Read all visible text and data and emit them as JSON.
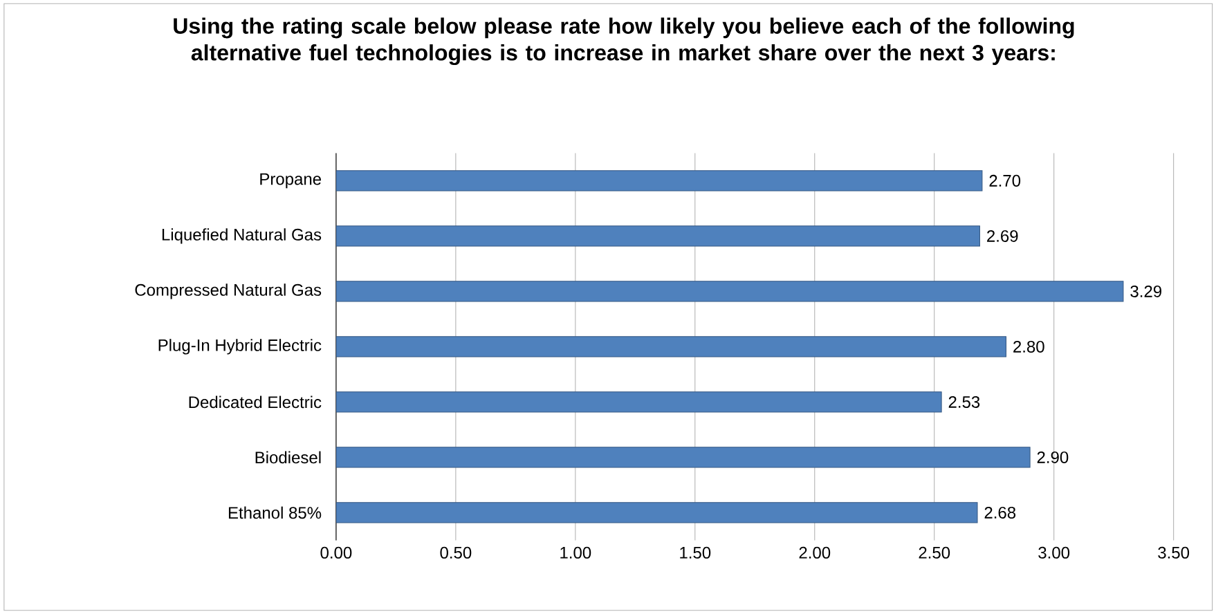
{
  "chart_data": {
    "type": "bar",
    "orientation": "horizontal",
    "title": "Using the rating scale below please rate how likely you believe each of the following alternative fuel technologies is to increase in market share over the next 3 years:",
    "categories": [
      "Propane",
      "Liquefied Natural Gas",
      "Compressed Natural Gas",
      "Plug-In Hybrid Electric",
      "Dedicated Electric",
      "Biodiesel",
      "Ethanol 85%"
    ],
    "values": [
      2.7,
      2.69,
      3.29,
      2.8,
      2.53,
      2.9,
      2.68
    ],
    "value_labels": [
      "2.70",
      "2.69",
      "3.29",
      "2.80",
      "2.53",
      "2.90",
      "2.68"
    ],
    "color": "#4f81bd",
    "xlim": [
      0,
      3.5
    ],
    "xticks": [
      {
        "value": 0,
        "label": "0.00"
      },
      {
        "value": 0.5,
        "label": "0.50"
      },
      {
        "value": 1,
        "label": "1.00"
      },
      {
        "value": 1.5,
        "label": "1.50"
      },
      {
        "value": 2,
        "label": "2.00"
      },
      {
        "value": 2.5,
        "label": "2.50"
      },
      {
        "value": 3,
        "label": "3.00"
      },
      {
        "value": 3.5,
        "label": "3.50"
      }
    ],
    "grid": "x"
  }
}
